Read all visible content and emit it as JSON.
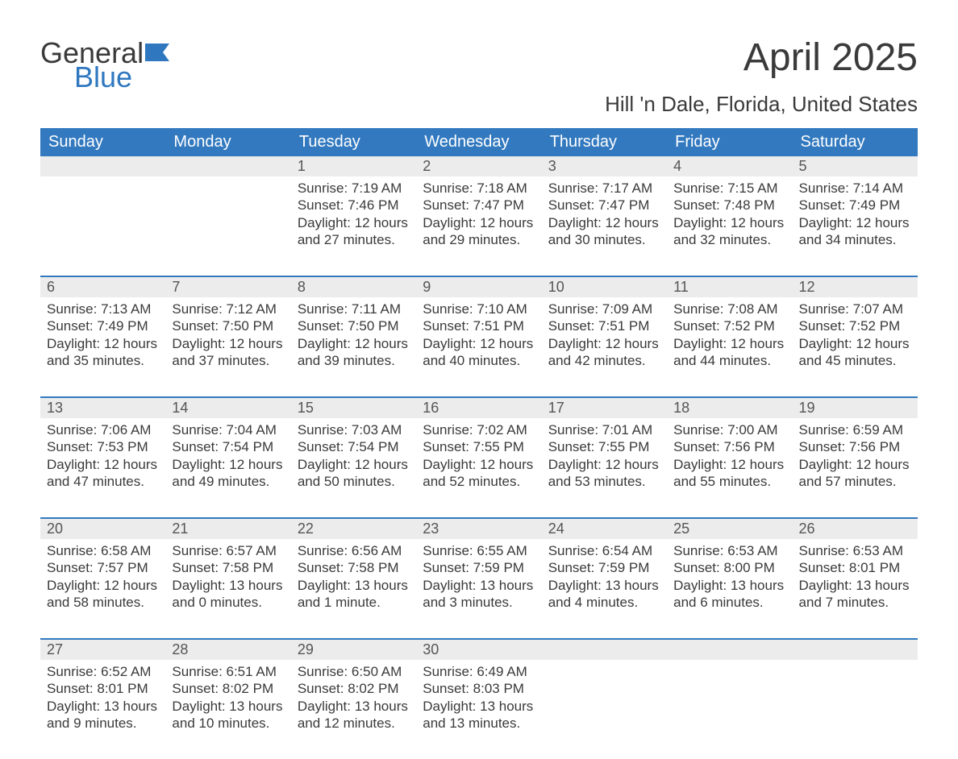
{
  "brand": {
    "word1": "General",
    "word2": "Blue",
    "accent_color": "#2f78bf"
  },
  "title": "April 2025",
  "location": "Hill 'n Dale, Florida, United States",
  "colors": {
    "header_bg": "#3279bf",
    "header_text": "#ffffff",
    "daynum_bg": "#ececec",
    "week_sep": "#3279bf",
    "body_text": "#3a3a3a"
  },
  "font": {
    "th_size": 20,
    "daynum_size": 18,
    "detail_size": 17,
    "title_size": 48,
    "location_size": 26
  },
  "day_headers": [
    "Sunday",
    "Monday",
    "Tuesday",
    "Wednesday",
    "Thursday",
    "Friday",
    "Saturday"
  ],
  "weeks": [
    [
      null,
      null,
      {
        "n": "1",
        "sr": "7:19 AM",
        "ss": "7:46 PM",
        "dl": "12 hours and 27 minutes."
      },
      {
        "n": "2",
        "sr": "7:18 AM",
        "ss": "7:47 PM",
        "dl": "12 hours and 29 minutes."
      },
      {
        "n": "3",
        "sr": "7:17 AM",
        "ss": "7:47 PM",
        "dl": "12 hours and 30 minutes."
      },
      {
        "n": "4",
        "sr": "7:15 AM",
        "ss": "7:48 PM",
        "dl": "12 hours and 32 minutes."
      },
      {
        "n": "5",
        "sr": "7:14 AM",
        "ss": "7:49 PM",
        "dl": "12 hours and 34 minutes."
      }
    ],
    [
      {
        "n": "6",
        "sr": "7:13 AM",
        "ss": "7:49 PM",
        "dl": "12 hours and 35 minutes."
      },
      {
        "n": "7",
        "sr": "7:12 AM",
        "ss": "7:50 PM",
        "dl": "12 hours and 37 minutes."
      },
      {
        "n": "8",
        "sr": "7:11 AM",
        "ss": "7:50 PM",
        "dl": "12 hours and 39 minutes."
      },
      {
        "n": "9",
        "sr": "7:10 AM",
        "ss": "7:51 PM",
        "dl": "12 hours and 40 minutes."
      },
      {
        "n": "10",
        "sr": "7:09 AM",
        "ss": "7:51 PM",
        "dl": "12 hours and 42 minutes."
      },
      {
        "n": "11",
        "sr": "7:08 AM",
        "ss": "7:52 PM",
        "dl": "12 hours and 44 minutes."
      },
      {
        "n": "12",
        "sr": "7:07 AM",
        "ss": "7:52 PM",
        "dl": "12 hours and 45 minutes."
      }
    ],
    [
      {
        "n": "13",
        "sr": "7:06 AM",
        "ss": "7:53 PM",
        "dl": "12 hours and 47 minutes."
      },
      {
        "n": "14",
        "sr": "7:04 AM",
        "ss": "7:54 PM",
        "dl": "12 hours and 49 minutes."
      },
      {
        "n": "15",
        "sr": "7:03 AM",
        "ss": "7:54 PM",
        "dl": "12 hours and 50 minutes."
      },
      {
        "n": "16",
        "sr": "7:02 AM",
        "ss": "7:55 PM",
        "dl": "12 hours and 52 minutes."
      },
      {
        "n": "17",
        "sr": "7:01 AM",
        "ss": "7:55 PM",
        "dl": "12 hours and 53 minutes."
      },
      {
        "n": "18",
        "sr": "7:00 AM",
        "ss": "7:56 PM",
        "dl": "12 hours and 55 minutes."
      },
      {
        "n": "19",
        "sr": "6:59 AM",
        "ss": "7:56 PM",
        "dl": "12 hours and 57 minutes."
      }
    ],
    [
      {
        "n": "20",
        "sr": "6:58 AM",
        "ss": "7:57 PM",
        "dl": "12 hours and 58 minutes."
      },
      {
        "n": "21",
        "sr": "6:57 AM",
        "ss": "7:58 PM",
        "dl": "13 hours and 0 minutes."
      },
      {
        "n": "22",
        "sr": "6:56 AM",
        "ss": "7:58 PM",
        "dl": "13 hours and 1 minute."
      },
      {
        "n": "23",
        "sr": "6:55 AM",
        "ss": "7:59 PM",
        "dl": "13 hours and 3 minutes."
      },
      {
        "n": "24",
        "sr": "6:54 AM",
        "ss": "7:59 PM",
        "dl": "13 hours and 4 minutes."
      },
      {
        "n": "25",
        "sr": "6:53 AM",
        "ss": "8:00 PM",
        "dl": "13 hours and 6 minutes."
      },
      {
        "n": "26",
        "sr": "6:53 AM",
        "ss": "8:01 PM",
        "dl": "13 hours and 7 minutes."
      }
    ],
    [
      {
        "n": "27",
        "sr": "6:52 AM",
        "ss": "8:01 PM",
        "dl": "13 hours and 9 minutes."
      },
      {
        "n": "28",
        "sr": "6:51 AM",
        "ss": "8:02 PM",
        "dl": "13 hours and 10 minutes."
      },
      {
        "n": "29",
        "sr": "6:50 AM",
        "ss": "8:02 PM",
        "dl": "13 hours and 12 minutes."
      },
      {
        "n": "30",
        "sr": "6:49 AM",
        "ss": "8:03 PM",
        "dl": "13 hours and 13 minutes."
      },
      null,
      null,
      null
    ]
  ],
  "labels": {
    "sunrise": "Sunrise: ",
    "sunset": "Sunset: ",
    "daylight": "Daylight: "
  }
}
